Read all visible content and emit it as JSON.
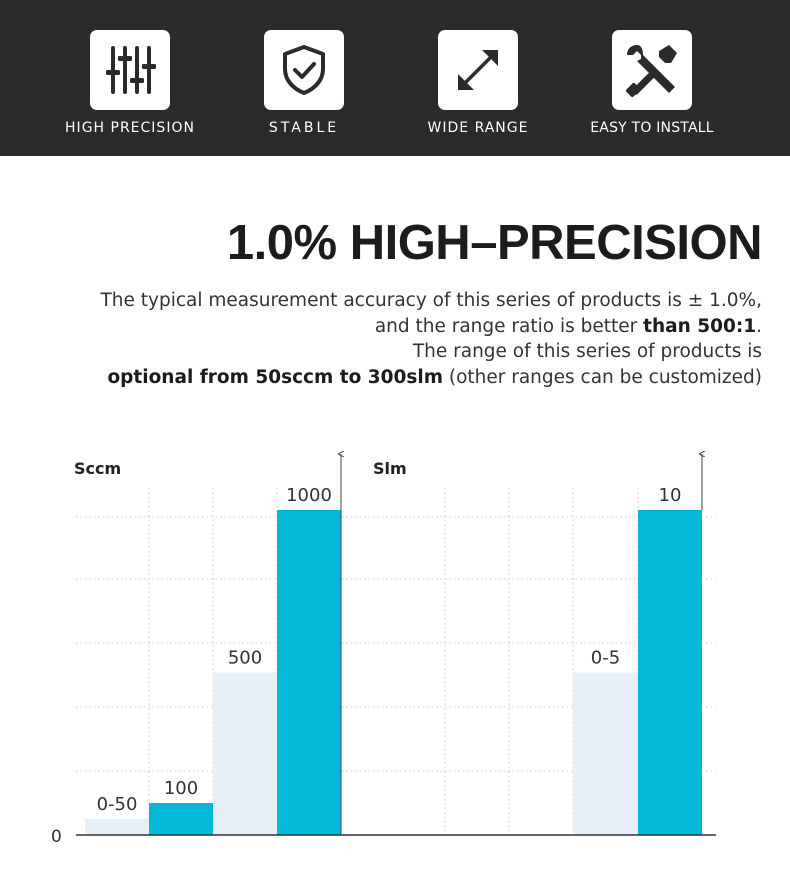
{
  "features": [
    {
      "label": "HIGH PRECISION",
      "icon": "sliders-icon"
    },
    {
      "label": "STABLE",
      "icon": "shield-check-icon"
    },
    {
      "label": "WIDE RANGE",
      "icon": "diagonal-arrow-icon"
    },
    {
      "label": "EASY TO INSTALL",
      "icon": "tools-icon"
    }
  ],
  "headline": "1.0% HIGH–PRECISION",
  "description": {
    "line1": "The typical measurement accuracy of this series of products is ± 1.0%,",
    "line2_pre": "and the range ratio is better ",
    "line2_bold": "than 500:1",
    "line2_post": ".",
    "line3": "The range of this series of products is",
    "line4_bold": "optional from 50sccm to 300slm",
    "line4_post": " (other ranges can be customized)"
  },
  "colors": {
    "topbar": "#2b2b2b",
    "primary_bar": "#05b8d8",
    "secondary_bar": "#e6eef6"
  },
  "chart_data": {
    "type": "bar",
    "zero_label": "0",
    "panels": [
      {
        "unit": "Sccm",
        "bars": [
          {
            "label": "0-50",
            "value": 50,
            "style": "secondary"
          },
          {
            "label": "100",
            "value": 100,
            "style": "primary"
          },
          {
            "label": "500",
            "value": 500,
            "style": "secondary"
          },
          {
            "label": "1000",
            "value": 1000,
            "style": "primary"
          }
        ]
      },
      {
        "unit": "Slm",
        "bars": [
          {
            "label": "0-5",
            "value": 5,
            "style": "secondary"
          },
          {
            "label": "10",
            "value": 10,
            "style": "primary"
          }
        ]
      }
    ]
  }
}
